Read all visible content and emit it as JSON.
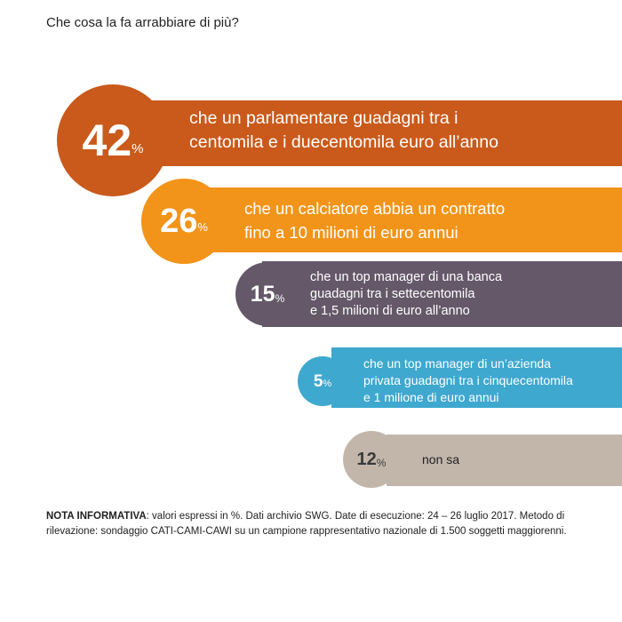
{
  "title": "Che cosa la fa arrabbiare di più?",
  "chart_data": {
    "type": "bar",
    "title": "Che cosa la fa arrabbiare di più?",
    "unit": "%",
    "items": [
      {
        "value": 42,
        "label_lines": [
          "che un parlamentare guadagni tra i",
          "centomila e i duecentomila euro all’anno"
        ],
        "color": "#c95a1b"
      },
      {
        "value": 26,
        "label_lines": [
          "che un calciatore abbia un contratto",
          "fino a 10 milioni di euro annui"
        ],
        "color": "#f29419"
      },
      {
        "value": 15,
        "label_lines": [
          "che un top manager di una banca",
          "guadagni tra i settecentomila",
          "e 1,5 milioni di euro all’anno"
        ],
        "color": "#645869"
      },
      {
        "value": 5,
        "label_lines": [
          "che un top manager di un’azienda",
          "privata guadagni tra i cinquecentomila",
          "e 1 milione di euro annui"
        ],
        "color": "#3ea8cf"
      },
      {
        "value": 12,
        "label_lines": [
          "non sa"
        ],
        "color": "#c2b6ab",
        "number_color": "#3a3a3a",
        "label_color": "#222222"
      }
    ]
  },
  "note": {
    "label": "NOTA INFORMATIVA",
    "text": ": valori espressi in %. Dati archivio SWG. Date di esecuzione: 24 – 26 luglio 2017. Metodo di rilevazione: sondaggio CATI-CAMI-CAWI su un campione rappresentativo nazionale di 1.500 soggetti maggiorenni."
  }
}
